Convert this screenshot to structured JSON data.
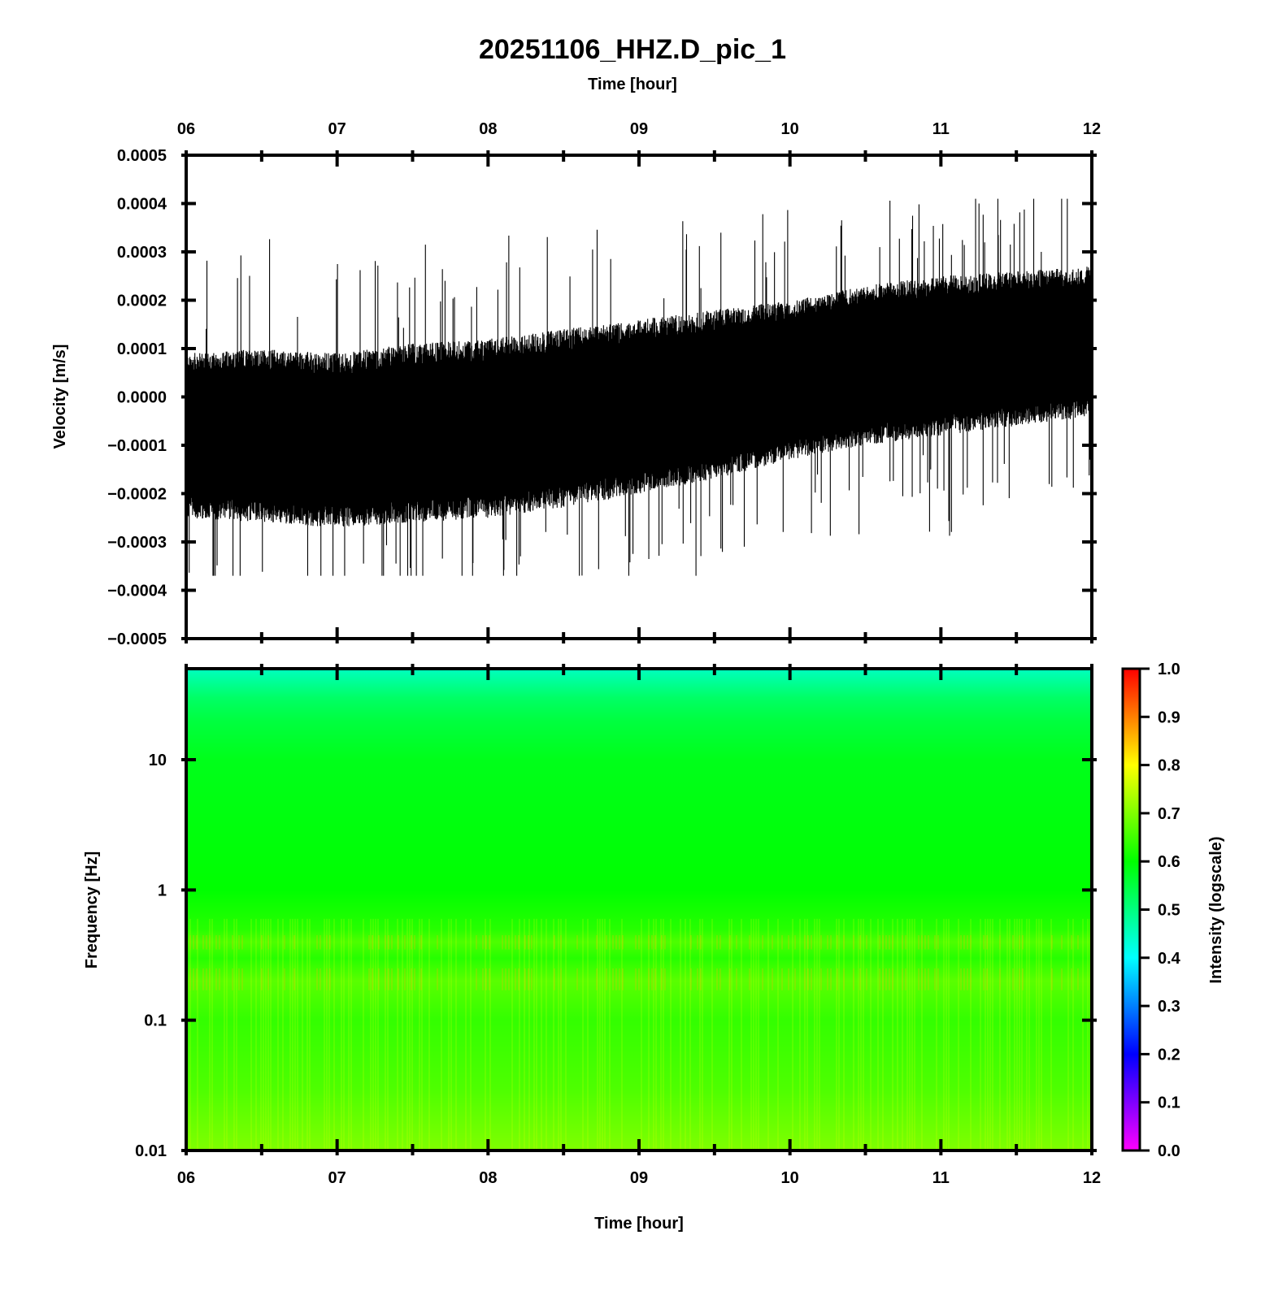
{
  "figure": {
    "title": "20251106_HHZ.D_pic_1",
    "top_time_label": "Time [hour]",
    "bottom_time_label": "Time [hour]"
  },
  "chart_data": [
    {
      "type": "line",
      "name": "seismogram",
      "ylabel": "Velocity [m/s]",
      "x_ticks": [
        "06",
        "07",
        "08",
        "09",
        "10",
        "11",
        "12"
      ],
      "y_ticks": [
        "0.0005",
        "0.0004",
        "0.0003",
        "0.0002",
        "0.0001",
        "0.0000",
        "−0.0001",
        "−0.0002",
        "−0.0003",
        "−0.0004",
        "−0.0005"
      ],
      "xlim": [
        6,
        12
      ],
      "ylim": [
        -0.0005,
        0.0005
      ],
      "trace_color": "#000000",
      "envelope": {
        "hour": [
          6.0,
          6.5,
          7.0,
          7.5,
          8.0,
          8.5,
          9.0,
          9.5,
          10.0,
          10.5,
          11.0,
          11.5,
          12.0
        ],
        "upper": [
          9e-05,
          0.0001,
          9e-05,
          0.00011,
          0.00012,
          0.00014,
          0.00016,
          0.00018,
          0.0002,
          0.00023,
          0.00025,
          0.00026,
          0.00027
        ],
        "lower": [
          -0.00025,
          -0.00026,
          -0.00027,
          -0.00026,
          -0.00025,
          -0.00023,
          -0.0002,
          -0.00017,
          -0.00013,
          -0.0001,
          -8e-05,
          -6e-05,
          -4e-05
        ],
        "peak_max": 0.00041,
        "peak_min": -0.00037
      }
    },
    {
      "type": "heatmap",
      "name": "spectrogram",
      "ylabel": "Frequency [Hz]",
      "xlabel": "Time [hour]",
      "x_ticks": [
        "06",
        "07",
        "08",
        "09",
        "10",
        "11",
        "12"
      ],
      "y_ticks": [
        "10",
        "1",
        "0.1",
        "0.01"
      ],
      "xlim": [
        6,
        12
      ],
      "ylim": [
        0.01,
        50
      ],
      "yscale": "log",
      "colorbar": {
        "label": "Intensity (logscale)",
        "ticks": [
          "1.0",
          "0.9",
          "0.8",
          "0.7",
          "0.6",
          "0.5",
          "0.4",
          "0.3",
          "0.2",
          "0.1",
          "0.0"
        ],
        "range": [
          0,
          1
        ],
        "colors": [
          "#ff00ff",
          "#0000ff",
          "#00ffff",
          "#00ff00",
          "#ffff00",
          "#ff8000",
          "#ff0000"
        ]
      },
      "intensity_profile": {
        "freq_hz": [
          50,
          30,
          20,
          10,
          1,
          0.5,
          0.4,
          0.3,
          0.2,
          0.1,
          0.03,
          0.01
        ],
        "intensity": [
          0.45,
          0.52,
          0.55,
          0.58,
          0.6,
          0.63,
          0.66,
          0.63,
          0.67,
          0.64,
          0.66,
          0.7
        ]
      }
    }
  ]
}
